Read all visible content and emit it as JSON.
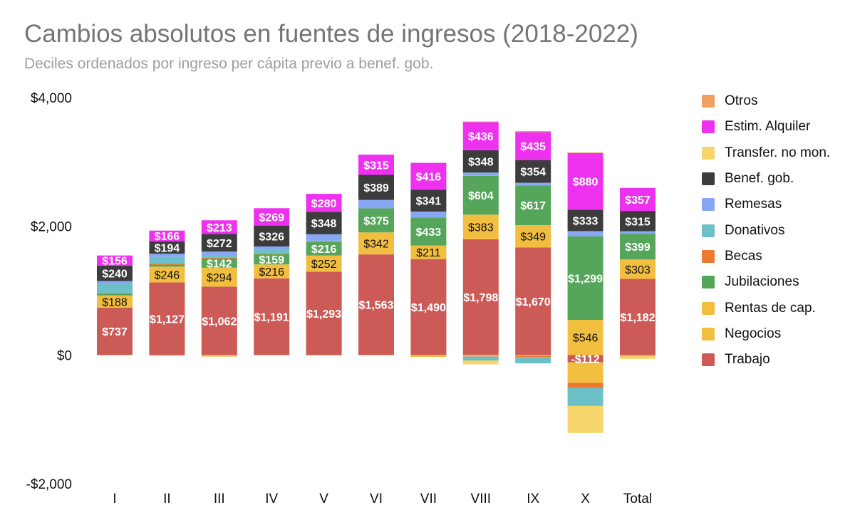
{
  "chart_data": {
    "type": "bar",
    "stacked": true,
    "title": "Cambios absolutos en fuentes de ingresos (2018-2022)",
    "subtitle": "Deciles ordenados por ingreso per cápita previo a benef. gob.",
    "categories": [
      "I",
      "II",
      "III",
      "IV",
      "V",
      "VI",
      "VII",
      "VIII",
      "IX",
      "X",
      "Total"
    ],
    "ylim": [
      -2000,
      4000
    ],
    "yticks": [
      4000,
      2000,
      0,
      -2000
    ],
    "ytick_labels": [
      "$4,000",
      "$2,000",
      "$0",
      "-$2,000"
    ],
    "legend_position": "right",
    "series": [
      {
        "name": "Trabajo",
        "color": "#cc5a57",
        "values": [
          737,
          1127,
          1062,
          1191,
          1293,
          1563,
          1490,
          1798,
          1670,
          -112,
          1182
        ],
        "labels": [
          "$737",
          "$1,127",
          "$1,062",
          "$1,191",
          "$1,293",
          "$1,563",
          "$1,490",
          "$1,798",
          "$1,670",
          "-$112",
          "$1,182"
        ]
      },
      {
        "name": "Negocios",
        "color": "#f2be3f",
        "values": [
          -5,
          -15,
          -25,
          -5,
          -10,
          -5,
          -30,
          -20,
          -10,
          -320,
          -10
        ],
        "labels": [
          "",
          "",
          "",
          "",
          "",
          "",
          "",
          "",
          "",
          "",
          ""
        ]
      },
      {
        "name": "Rentas de cap.",
        "color": "#f2be3f",
        "values": [
          188,
          246,
          294,
          216,
          252,
          342,
          211,
          383,
          349,
          546,
          303
        ],
        "labels": [
          "$188",
          "$246",
          "$294",
          "$216",
          "$252",
          "$342",
          "$211",
          "$383",
          "$349",
          "$546",
          "$303"
        ]
      },
      {
        "name": "Jubilaciones",
        "color": "#55a55a",
        "values": [
          25,
          30,
          142,
          159,
          216,
          375,
          433,
          604,
          617,
          1299,
          399
        ],
        "labels": [
          "",
          "",
          "$142",
          "$159",
          "$216",
          "$375",
          "$433",
          "$604",
          "$617",
          "$1,299",
          "$399"
        ]
      },
      {
        "name": "Becas",
        "color": "#ee7a2f",
        "values": [
          10,
          20,
          15,
          10,
          5,
          0,
          5,
          -5,
          -20,
          -80,
          -10
        ],
        "labels": [
          "",
          "",
          "",
          "",
          "",
          "",
          "",
          "",
          "",
          "",
          ""
        ]
      },
      {
        "name": "Donativos",
        "color": "#6cc0c8",
        "values": [
          150,
          100,
          30,
          60,
          10,
          0,
          0,
          -60,
          -100,
          -280,
          0
        ],
        "labels": [
          "",
          "",
          "",
          "",
          "",
          "",
          "",
          "",
          "",
          "",
          ""
        ]
      },
      {
        "name": "Remesas",
        "color": "#87a7f3",
        "values": [
          40,
          50,
          65,
          50,
          100,
          130,
          90,
          50,
          40,
          80,
          40
        ],
        "labels": [
          "",
          "",
          "",
          "",
          "",
          "",
          "",
          "",
          "",
          "",
          ""
        ]
      },
      {
        "name": "Benef. gob.",
        "color": "#3c3c3c",
        "values": [
          240,
          194,
          272,
          326,
          348,
          389,
          341,
          348,
          354,
          333,
          315
        ],
        "labels": [
          "$240",
          "$194",
          "$272",
          "$326",
          "$348",
          "$389",
          "$341",
          "$348",
          "$354",
          "$333",
          "$315"
        ]
      },
      {
        "name": "Transfer. no mon.",
        "color": "#f6d56a",
        "values": [
          0,
          0,
          0,
          0,
          0,
          0,
          0,
          -60,
          0,
          -420,
          -40
        ],
        "labels": [
          "",
          "",
          "",
          "",
          "",
          "",
          "",
          "",
          "",
          "",
          ""
        ]
      },
      {
        "name": "Estim. Alquiler",
        "color": "#ee31ef",
        "values": [
          156,
          166,
          213,
          269,
          280,
          315,
          416,
          436,
          435,
          880,
          357
        ],
        "labels": [
          "$156",
          "$166",
          "$213",
          "$269",
          "$280",
          "$315",
          "$416",
          "$436",
          "$435",
          "$880",
          "$357"
        ]
      },
      {
        "name": "Otros",
        "color": "#f0a060",
        "values": [
          0,
          0,
          0,
          0,
          0,
          0,
          0,
          10,
          15,
          10,
          0
        ],
        "labels": [
          "",
          "",
          "",
          "",
          "",
          "",
          "",
          "",
          "",
          "",
          ""
        ]
      }
    ],
    "legend": [
      "Otros",
      "Estim. Alquiler",
      "Transfer. no mon.",
      "Benef. gob.",
      "Remesas",
      "Donativos",
      "Becas",
      "Jubilaciones",
      "Rentas de cap.",
      "Negocios",
      "Trabajo"
    ]
  }
}
